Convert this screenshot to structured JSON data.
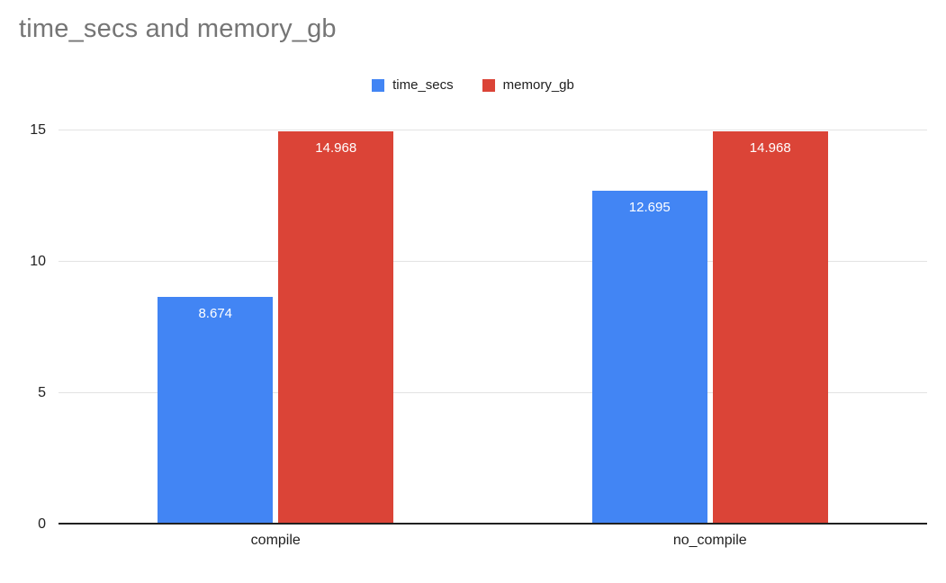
{
  "chart_data": {
    "type": "bar",
    "title": "time_secs and memory_gb",
    "categories": [
      "compile",
      "no_compile"
    ],
    "series": [
      {
        "name": "time_secs",
        "color": "#4285F4",
        "values": [
          "8.674",
          "12.695"
        ]
      },
      {
        "name": "memory_gb",
        "color": "#DB4437",
        "values": [
          "14.968",
          "14.968"
        ]
      }
    ],
    "values_numeric": {
      "time_secs": [
        8.674,
        12.695
      ],
      "memory_gb": [
        14.968,
        14.968
      ]
    },
    "xlabel": "",
    "ylabel": "",
    "ylim": [
      0,
      15
    ],
    "yticks": [
      0,
      5,
      10,
      15
    ],
    "grid": true,
    "legend_position": "top-center",
    "data_labels": true,
    "colors": {
      "grid": "#e3e3e3",
      "axis": "#212121",
      "title": "#757575",
      "text": "#212121",
      "datalabel": "#ffffff",
      "background": "#ffffff"
    }
  }
}
